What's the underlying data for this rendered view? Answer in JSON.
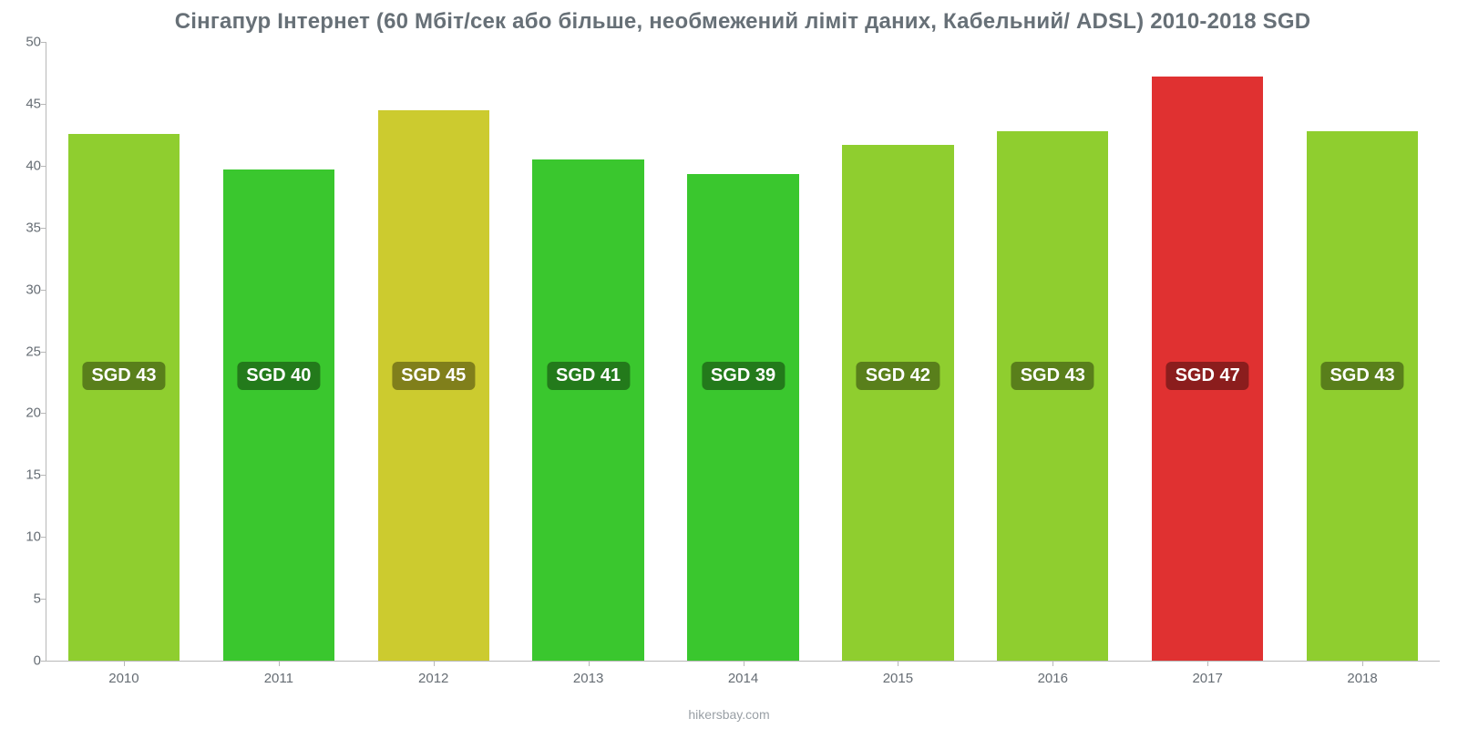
{
  "chart": {
    "type": "bar",
    "title": "Сінгапур Інтернет (60 Мбіт/сек або більше, необмежений ліміт даних, Кабельний/ ADSL) 2010-2018 SGD",
    "title_fontsize": 24,
    "title_color": "#677077",
    "source": "hikersbay.com",
    "background_color": "#ffffff",
    "ylim": [
      0,
      50
    ],
    "yticks": [
      0,
      5,
      10,
      15,
      20,
      25,
      30,
      35,
      40,
      45,
      50
    ],
    "axis_color": "#b8b8b8",
    "tick_label_color": "#666d74",
    "tick_label_fontsize": 15,
    "bar_width_ratio": 0.72,
    "categories": [
      "2010",
      "2011",
      "2012",
      "2013",
      "2014",
      "2015",
      "2016",
      "2017",
      "2018"
    ],
    "values": [
      42.6,
      39.7,
      44.5,
      40.5,
      39.3,
      41.7,
      42.8,
      47.2,
      42.8
    ],
    "bar_labels": [
      "SGD 43",
      "SGD 40",
      "SGD 45",
      "SGD 41",
      "SGD 39",
      "SGD 42",
      "SGD 43",
      "SGD 47",
      "SGD 43"
    ],
    "bar_colors": [
      "#8fce2f",
      "#3ac72e",
      "#cccb2f",
      "#3ac72e",
      "#3ac72e",
      "#8fce2f",
      "#8fce2f",
      "#e03131",
      "#8fce2f"
    ],
    "label_bg_colors": [
      "#597f1b",
      "#237a1b",
      "#807f1b",
      "#237a1b",
      "#237a1b",
      "#597f1b",
      "#597f1b",
      "#8b1d1d",
      "#597f1b"
    ],
    "label_text_color": "#ffffff",
    "label_fontsize": 20,
    "label_center_y_value": 23
  }
}
